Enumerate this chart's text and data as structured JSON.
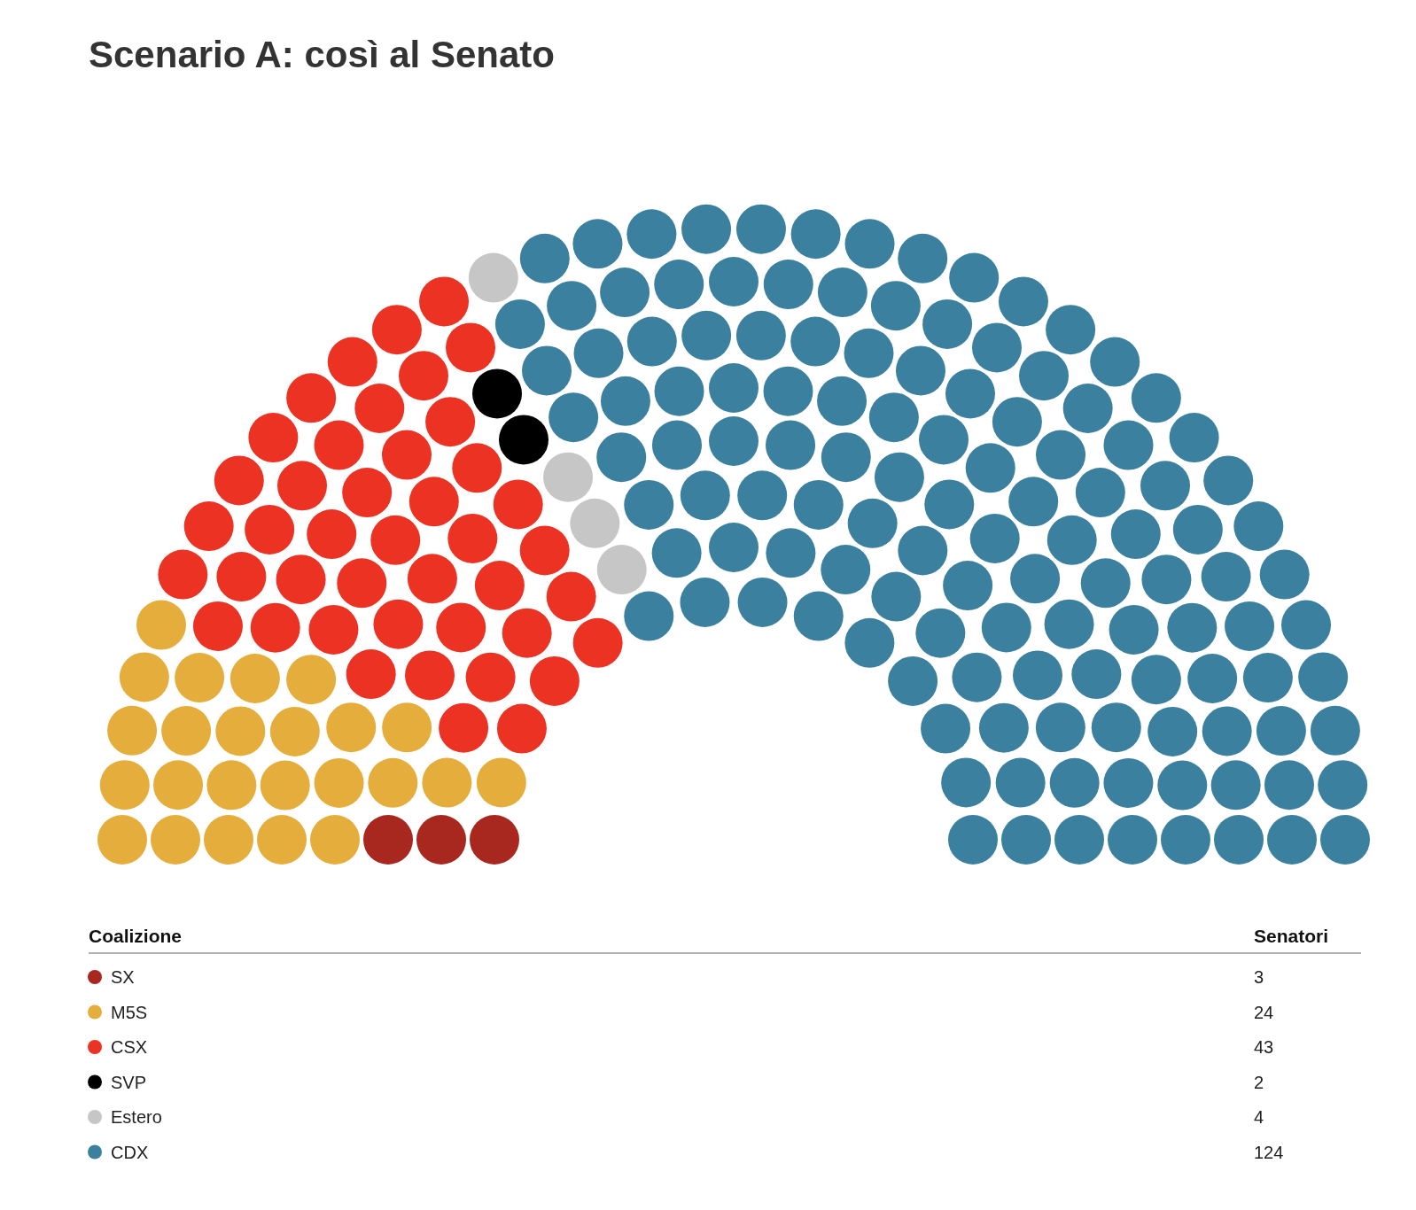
{
  "chart_data": {
    "type": "other",
    "title": "Scenario A: così al Senato",
    "legend_title": "Coalizione",
    "ylabel": "Senatori",
    "categories": [
      "SX",
      "M5S",
      "CSX",
      "SVP",
      "Estero",
      "CDX"
    ],
    "values": [
      3,
      24,
      43,
      2,
      4,
      124
    ],
    "colors": [
      "#a8281f",
      "#e5ae3c",
      "#ec3323",
      "#000000",
      "#c6c6c6",
      "#3b809f"
    ],
    "data_labels": true
  }
}
